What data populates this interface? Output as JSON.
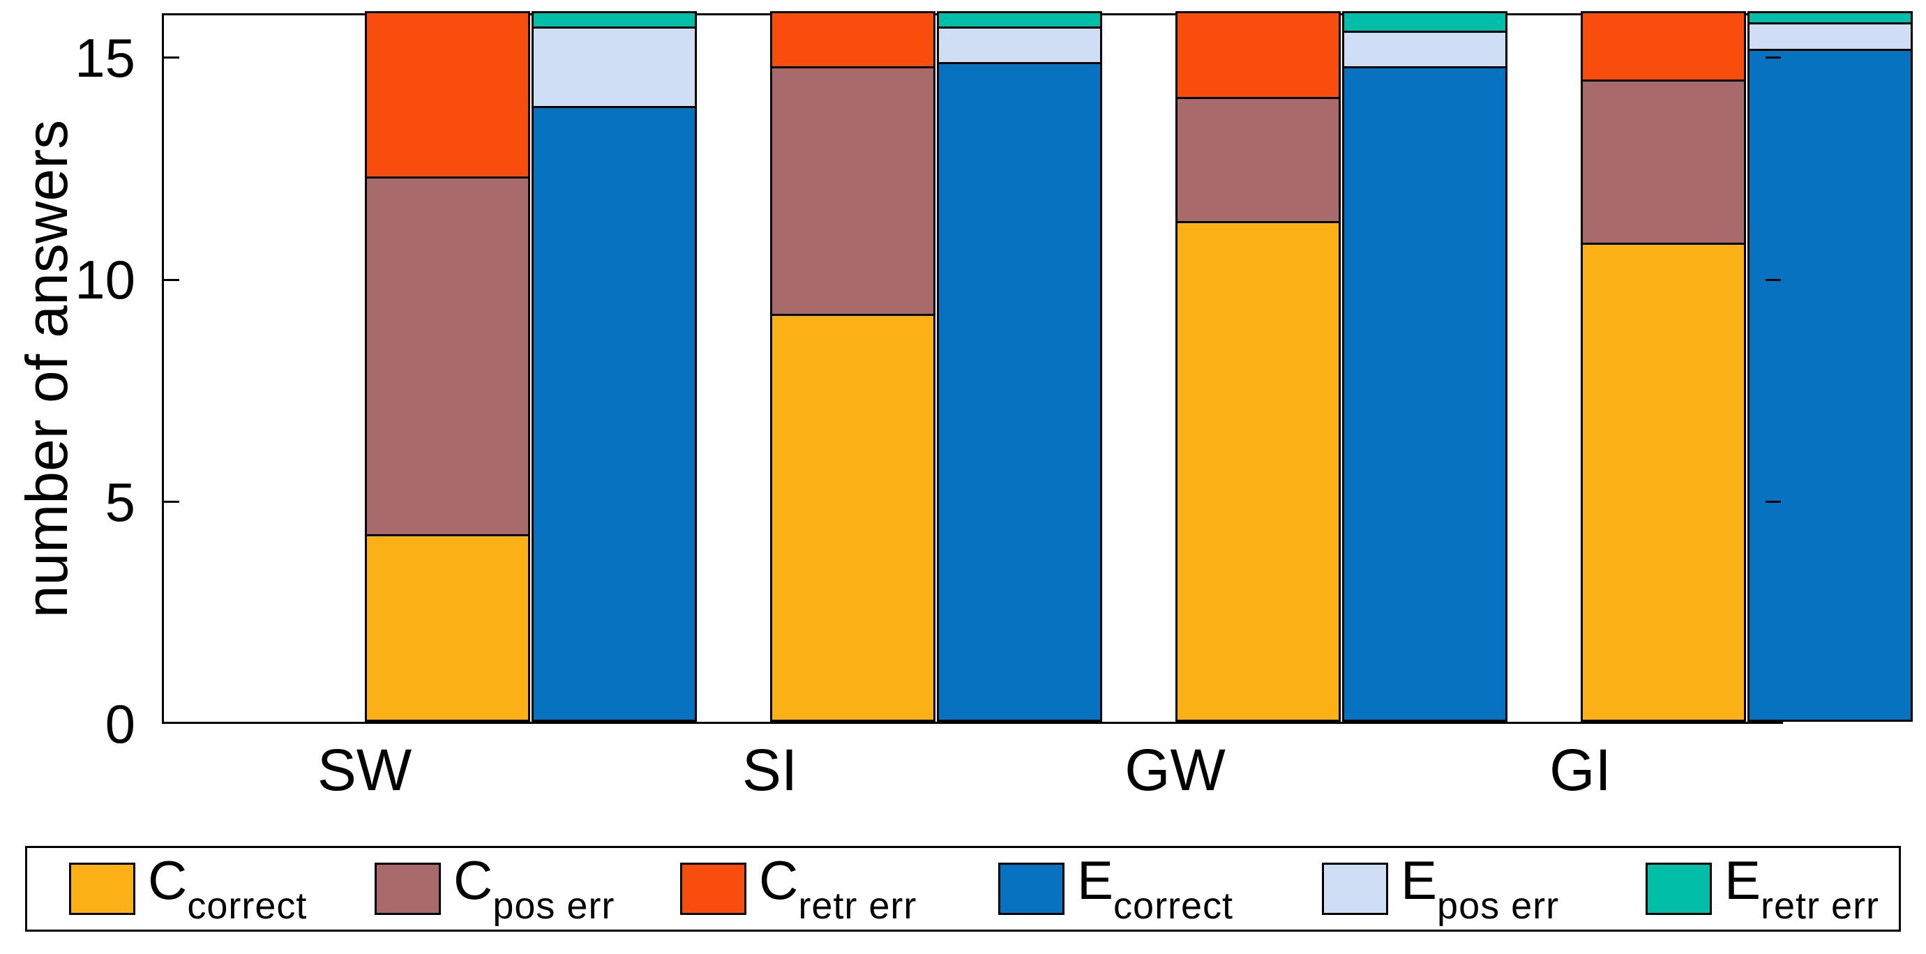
{
  "figure": {
    "background": "#ffffff",
    "axis_color": "#000000",
    "text_color": "#000000"
  },
  "chart_data": {
    "type": "bar",
    "subtype": "grouped-stacked",
    "title": "",
    "xlabel": "",
    "ylabel": "number of answers",
    "categories": [
      "SW",
      "SI",
      "GW",
      "GI"
    ],
    "ylim": [
      0,
      16
    ],
    "yticks": [
      0,
      5,
      10,
      15
    ],
    "grid": false,
    "legend_position": "bottom",
    "bars_per_group": [
      "C",
      "E"
    ],
    "stack_total": 16,
    "series": [
      {
        "name": "C_correct",
        "bar": "C",
        "label_main": "C",
        "label_sub": "correct",
        "color": "#FBB116",
        "values": [
          4.2,
          9.2,
          11.3,
          10.8
        ]
      },
      {
        "name": "C_pos_err",
        "bar": "C",
        "label_main": "C",
        "label_sub": "pos err",
        "color": "#A86A6A",
        "values": [
          8.1,
          5.6,
          2.8,
          3.7
        ]
      },
      {
        "name": "C_retr_err",
        "bar": "C",
        "label_main": "C",
        "label_sub": "retr err",
        "color": "#F84D0D",
        "values": [
          3.7,
          1.2,
          1.9,
          1.5
        ]
      },
      {
        "name": "E_correct",
        "bar": "E",
        "label_main": "E",
        "label_sub": "correct",
        "color": "#0672C0",
        "values": [
          13.9,
          14.9,
          14.8,
          15.2
        ]
      },
      {
        "name": "E_pos_err",
        "bar": "E",
        "label_main": "E",
        "label_sub": "pos err",
        "color": "#CFDEF5",
        "values": [
          1.8,
          0.8,
          0.8,
          0.6
        ]
      },
      {
        "name": "E_retr_err",
        "bar": "E",
        "label_main": "E",
        "label_sub": "retr err",
        "color": "#00BEA7",
        "values": [
          0.3,
          0.3,
          0.4,
          0.2
        ]
      }
    ]
  }
}
